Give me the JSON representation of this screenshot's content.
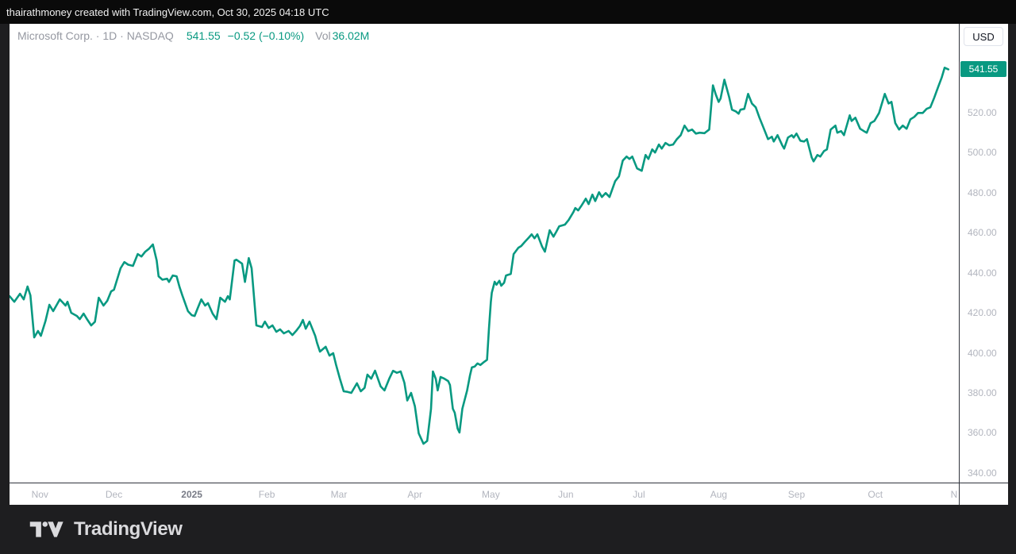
{
  "attribution_bar": {
    "text": "thairathmoney created with TradingView.com, Oct 30, 2025 04:18 UTC"
  },
  "legend": {
    "symbol_text": "Microsoft Corp. · 1D · NASDAQ",
    "last_price": "541.55",
    "change": "−0.52 (−0.10%)",
    "volume_label": "Vol",
    "volume_value": "36.02M"
  },
  "price_axis": {
    "currency_label": "USD"
  },
  "footer": {
    "brand": "TradingView"
  },
  "colors": {
    "accent_teal": "#089981",
    "axis_text": "#b2b5be",
    "year_tick_text": "#787b86",
    "legend_text": "#9598a1",
    "axis_line": "#30343d",
    "card_background": "#ffffff",
    "page_background": "#1e1e20",
    "topbar_background": "#0a0a0a"
  },
  "chart_data": {
    "type": "line",
    "title": "Microsoft Corp. · 1D · NASDAQ",
    "symbol": "Microsoft Corp.",
    "interval": "1D",
    "exchange": "NASDAQ",
    "currency": "USD",
    "last_price": 541.55,
    "change": -0.52,
    "change_pct": -0.1,
    "volume": "36.02M",
    "line_color": "#089981",
    "grid": false,
    "x_range": [
      "Nov 2024",
      "Nov 2025"
    ],
    "ylim": [
      335.2,
      564.3
    ],
    "y_ticks": [
      340,
      360,
      380,
      400,
      420,
      440,
      460,
      480,
      500,
      520
    ],
    "x_ticks": [
      {
        "label": "Nov",
        "f": 0.032
      },
      {
        "label": "Dec",
        "f": 0.11
      },
      {
        "label": "2025",
        "f": 0.192,
        "year": true
      },
      {
        "label": "Feb",
        "f": 0.271
      },
      {
        "label": "Mar",
        "f": 0.347
      },
      {
        "label": "Apr",
        "f": 0.427
      },
      {
        "label": "May",
        "f": 0.507
      },
      {
        "label": "Jun",
        "f": 0.586
      },
      {
        "label": "Jul",
        "f": 0.663
      },
      {
        "label": "Aug",
        "f": 0.747
      },
      {
        "label": "Sep",
        "f": 0.829
      },
      {
        "label": "Oct",
        "f": 0.912
      },
      {
        "label": "N",
        "f": 0.995
      }
    ],
    "points": [
      [
        0.0,
        428.3
      ],
      [
        0.005,
        425.5
      ],
      [
        0.011,
        429.5
      ],
      [
        0.015,
        426.7
      ],
      [
        0.019,
        433.1
      ],
      [
        0.022,
        428.7
      ],
      [
        0.026,
        407.7
      ],
      [
        0.03,
        410.9
      ],
      [
        0.033,
        408.5
      ],
      [
        0.038,
        416.0
      ],
      [
        0.042,
        424.0
      ],
      [
        0.046,
        420.8
      ],
      [
        0.053,
        426.7
      ],
      [
        0.059,
        423.6
      ],
      [
        0.061,
        425.5
      ],
      [
        0.065,
        420.0
      ],
      [
        0.071,
        418.4
      ],
      [
        0.074,
        416.8
      ],
      [
        0.078,
        419.6
      ],
      [
        0.082,
        416.5
      ],
      [
        0.086,
        413.7
      ],
      [
        0.09,
        415.5
      ],
      [
        0.094,
        427.5
      ],
      [
        0.099,
        423.6
      ],
      [
        0.103,
        426.0
      ],
      [
        0.107,
        430.7
      ],
      [
        0.11,
        431.5
      ],
      [
        0.117,
        442.2
      ],
      [
        0.121,
        445.3
      ],
      [
        0.125,
        444.0
      ],
      [
        0.13,
        443.4
      ],
      [
        0.135,
        449.3
      ],
      [
        0.139,
        448.1
      ],
      [
        0.143,
        450.5
      ],
      [
        0.147,
        452.0
      ],
      [
        0.151,
        454.1
      ],
      [
        0.155,
        446.1
      ],
      [
        0.157,
        438.2
      ],
      [
        0.161,
        436.5
      ],
      [
        0.166,
        437.0
      ],
      [
        0.168,
        435.4
      ],
      [
        0.172,
        438.6
      ],
      [
        0.176,
        438.2
      ],
      [
        0.179,
        433.0
      ],
      [
        0.182,
        428.7
      ],
      [
        0.188,
        420.8
      ],
      [
        0.192,
        418.8
      ],
      [
        0.195,
        418.4
      ],
      [
        0.198,
        422.0
      ],
      [
        0.202,
        426.7
      ],
      [
        0.206,
        423.6
      ],
      [
        0.209,
        424.8
      ],
      [
        0.214,
        419.6
      ],
      [
        0.218,
        416.8
      ],
      [
        0.222,
        427.5
      ],
      [
        0.227,
        425.5
      ],
      [
        0.23,
        428.3
      ],
      [
        0.232,
        426.7
      ],
      [
        0.237,
        446.1
      ],
      [
        0.239,
        446.5
      ],
      [
        0.245,
        444.5
      ],
      [
        0.248,
        435.4
      ],
      [
        0.252,
        447.3
      ],
      [
        0.255,
        442.2
      ],
      [
        0.26,
        413.7
      ],
      [
        0.266,
        412.9
      ],
      [
        0.269,
        415.6
      ],
      [
        0.273,
        412.4
      ],
      [
        0.277,
        413.7
      ],
      [
        0.281,
        410.5
      ],
      [
        0.285,
        411.7
      ],
      [
        0.289,
        409.7
      ],
      [
        0.294,
        410.9
      ],
      [
        0.298,
        408.9
      ],
      [
        0.302,
        411.0
      ],
      [
        0.306,
        413.5
      ],
      [
        0.309,
        416.4
      ],
      [
        0.312,
        412.0
      ],
      [
        0.316,
        415.6
      ],
      [
        0.322,
        408.5
      ],
      [
        0.324,
        404.9
      ],
      [
        0.327,
        400.6
      ],
      [
        0.333,
        403.0
      ],
      [
        0.337,
        398.6
      ],
      [
        0.341,
        399.8
      ],
      [
        0.344,
        394.0
      ],
      [
        0.348,
        387.1
      ],
      [
        0.352,
        380.8
      ],
      [
        0.356,
        380.5
      ],
      [
        0.36,
        380.0
      ],
      [
        0.366,
        384.8
      ],
      [
        0.37,
        380.8
      ],
      [
        0.374,
        382.5
      ],
      [
        0.377,
        389.1
      ],
      [
        0.381,
        387.1
      ],
      [
        0.385,
        391.1
      ],
      [
        0.391,
        383.2
      ],
      [
        0.395,
        381.2
      ],
      [
        0.4,
        387.1
      ],
      [
        0.404,
        391.0
      ],
      [
        0.408,
        390.0
      ],
      [
        0.412,
        390.7
      ],
      [
        0.416,
        385.0
      ],
      [
        0.419,
        376.2
      ],
      [
        0.423,
        380.0
      ],
      [
        0.427,
        373.3
      ],
      [
        0.431,
        359.8
      ],
      [
        0.436,
        354.6
      ],
      [
        0.44,
        356.0
      ],
      [
        0.444,
        372.0
      ],
      [
        0.446,
        390.7
      ],
      [
        0.449,
        387.0
      ],
      [
        0.451,
        381.2
      ],
      [
        0.454,
        387.9
      ],
      [
        0.458,
        387.1
      ],
      [
        0.462,
        385.9
      ],
      [
        0.464,
        383.9
      ],
      [
        0.467,
        372.1
      ],
      [
        0.469,
        370.1
      ],
      [
        0.472,
        362.2
      ],
      [
        0.474,
        360.2
      ],
      [
        0.477,
        372.1
      ],
      [
        0.482,
        381.2
      ],
      [
        0.485,
        388.7
      ],
      [
        0.487,
        392.7
      ],
      [
        0.49,
        393.1
      ],
      [
        0.493,
        394.7
      ],
      [
        0.496,
        393.9
      ],
      [
        0.5,
        395.5
      ],
      [
        0.503,
        396.5
      ],
      [
        0.505,
        412.0
      ],
      [
        0.507,
        425.5
      ],
      [
        0.508,
        430.0
      ],
      [
        0.511,
        435.5
      ],
      [
        0.513,
        434.0
      ],
      [
        0.516,
        436.0
      ],
      [
        0.518,
        433.5
      ],
      [
        0.521,
        435.0
      ],
      [
        0.523,
        438.6
      ],
      [
        0.528,
        439.4
      ],
      [
        0.531,
        449.3
      ],
      [
        0.536,
        452.5
      ],
      [
        0.539,
        453.3
      ],
      [
        0.543,
        455.5
      ],
      [
        0.547,
        457.5
      ],
      [
        0.55,
        459.2
      ],
      [
        0.553,
        457.2
      ],
      [
        0.556,
        459.2
      ],
      [
        0.561,
        453.0
      ],
      [
        0.564,
        450.5
      ],
      [
        0.569,
        461.2
      ],
      [
        0.573,
        458.0
      ],
      [
        0.576,
        460.5
      ],
      [
        0.579,
        463.2
      ],
      [
        0.585,
        464.0
      ],
      [
        0.589,
        466.3
      ],
      [
        0.594,
        470.3
      ],
      [
        0.596,
        472.3
      ],
      [
        0.599,
        471.1
      ],
      [
        0.603,
        473.9
      ],
      [
        0.607,
        477.0
      ],
      [
        0.61,
        474.3
      ],
      [
        0.614,
        479.0
      ],
      [
        0.617,
        475.8
      ],
      [
        0.621,
        480.2
      ],
      [
        0.624,
        477.8
      ],
      [
        0.628,
        479.8
      ],
      [
        0.632,
        477.8
      ],
      [
        0.638,
        485.7
      ],
      [
        0.642,
        488.1
      ],
      [
        0.646,
        496.0
      ],
      [
        0.65,
        498.0
      ],
      [
        0.653,
        496.8
      ],
      [
        0.656,
        498.0
      ],
      [
        0.661,
        492.1
      ],
      [
        0.666,
        490.9
      ],
      [
        0.67,
        498.8
      ],
      [
        0.673,
        496.8
      ],
      [
        0.677,
        501.6
      ],
      [
        0.68,
        500.0
      ],
      [
        0.684,
        504.0
      ],
      [
        0.687,
        502.0
      ],
      [
        0.691,
        504.8
      ],
      [
        0.695,
        503.6
      ],
      [
        0.699,
        504.0
      ],
      [
        0.703,
        506.7
      ],
      [
        0.707,
        508.7
      ],
      [
        0.711,
        513.5
      ],
      [
        0.715,
        510.7
      ],
      [
        0.719,
        511.5
      ],
      [
        0.723,
        509.5
      ],
      [
        0.727,
        509.9
      ],
      [
        0.732,
        509.7
      ],
      [
        0.737,
        511.5
      ],
      [
        0.741,
        533.6
      ],
      [
        0.744,
        529.0
      ],
      [
        0.747,
        525.3
      ],
      [
        0.749,
        527.0
      ],
      [
        0.753,
        536.4
      ],
      [
        0.758,
        527.7
      ],
      [
        0.761,
        521.4
      ],
      [
        0.765,
        520.6
      ],
      [
        0.768,
        519.4
      ],
      [
        0.77,
        521.4
      ],
      [
        0.774,
        521.8
      ],
      [
        0.778,
        529.3
      ],
      [
        0.782,
        524.5
      ],
      [
        0.786,
        522.6
      ],
      [
        0.79,
        517.4
      ],
      [
        0.794,
        512.7
      ],
      [
        0.799,
        506.7
      ],
      [
        0.803,
        507.9
      ],
      [
        0.805,
        505.5
      ],
      [
        0.809,
        508.7
      ],
      [
        0.814,
        503.6
      ],
      [
        0.816,
        502.0
      ],
      [
        0.82,
        507.5
      ],
      [
        0.824,
        508.7
      ],
      [
        0.826,
        507.5
      ],
      [
        0.829,
        509.5
      ],
      [
        0.833,
        505.9
      ],
      [
        0.837,
        505.5
      ],
      [
        0.84,
        506.7
      ],
      [
        0.845,
        497.6
      ],
      [
        0.847,
        495.6
      ],
      [
        0.851,
        498.8
      ],
      [
        0.854,
        498.0
      ],
      [
        0.858,
        500.8
      ],
      [
        0.861,
        501.6
      ],
      [
        0.865,
        511.5
      ],
      [
        0.87,
        513.5
      ],
      [
        0.872,
        509.9
      ],
      [
        0.876,
        510.7
      ],
      [
        0.879,
        508.7
      ],
      [
        0.885,
        518.6
      ],
      [
        0.887,
        515.8
      ],
      [
        0.891,
        517.4
      ],
      [
        0.896,
        511.9
      ],
      [
        0.9,
        510.7
      ],
      [
        0.903,
        509.9
      ],
      [
        0.907,
        514.7
      ],
      [
        0.911,
        515.8
      ],
      [
        0.916,
        519.8
      ],
      [
        0.922,
        529.3
      ],
      [
        0.926,
        524.5
      ],
      [
        0.929,
        525.3
      ],
      [
        0.933,
        514.7
      ],
      [
        0.937,
        511.5
      ],
      [
        0.941,
        513.5
      ],
      [
        0.945,
        511.9
      ],
      [
        0.949,
        516.6
      ],
      [
        0.953,
        517.8
      ],
      [
        0.957,
        519.8
      ],
      [
        0.962,
        519.8
      ],
      [
        0.966,
        521.8
      ],
      [
        0.97,
        522.6
      ],
      [
        0.974,
        527.3
      ],
      [
        0.978,
        532.5
      ],
      [
        0.982,
        537.6
      ],
      [
        0.985,
        542.4
      ],
      [
        0.989,
        541.55
      ]
    ]
  }
}
